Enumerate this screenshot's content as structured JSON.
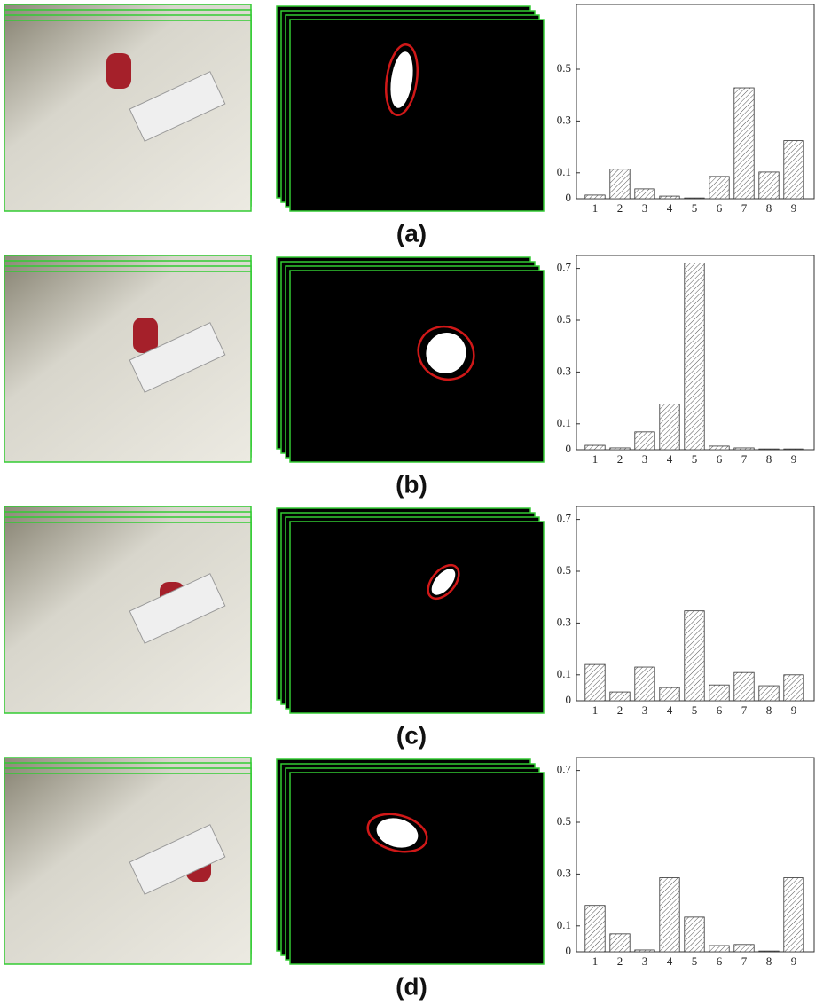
{
  "chart_data": [
    {
      "type": "bar",
      "caption": "(a)",
      "categories": [
        "1",
        "2",
        "3",
        "4",
        "5",
        "6",
        "7",
        "8",
        "9"
      ],
      "values": [
        0.014,
        0.114,
        0.038,
        0.01,
        0.003,
        0.086,
        0.428,
        0.103,
        0.224
      ],
      "color": "#555555",
      "ylim": [
        0,
        0.75
      ],
      "yticks": [
        0,
        0.1,
        0.3,
        0.5
      ]
    },
    {
      "type": "bar",
      "caption": "(b)",
      "categories": [
        "1",
        "2",
        "3",
        "4",
        "5",
        "6",
        "7",
        "8",
        "9"
      ],
      "values": [
        0.017,
        0.007,
        0.069,
        0.176,
        0.721,
        0.014,
        0.007,
        0.003,
        0.003
      ],
      "color": "#555555",
      "ylim": [
        0,
        0.75
      ],
      "yticks": [
        0,
        0.1,
        0.3,
        0.5,
        0.7
      ]
    },
    {
      "type": "bar",
      "caption": "(c)",
      "categories": [
        "1",
        "2",
        "3",
        "4",
        "5",
        "6",
        "7",
        "8",
        "9"
      ],
      "values": [
        0.14,
        0.034,
        0.13,
        0.051,
        0.347,
        0.061,
        0.109,
        0.058,
        0.1
      ],
      "color": "#555555",
      "ylim": [
        0,
        0.75
      ],
      "yticks": [
        0,
        0.1,
        0.3,
        0.5,
        0.7
      ]
    },
    {
      "type": "bar",
      "caption": "(d)",
      "categories": [
        "1",
        "2",
        "3",
        "4",
        "5",
        "6",
        "7",
        "8",
        "9"
      ],
      "values": [
        0.179,
        0.069,
        0.007,
        0.286,
        0.134,
        0.024,
        0.028,
        0.003,
        0.286
      ],
      "color": "#555555",
      "ylim": [
        0,
        0.75
      ],
      "yticks": [
        0,
        0.1,
        0.3,
        0.5,
        0.7
      ]
    }
  ]
}
